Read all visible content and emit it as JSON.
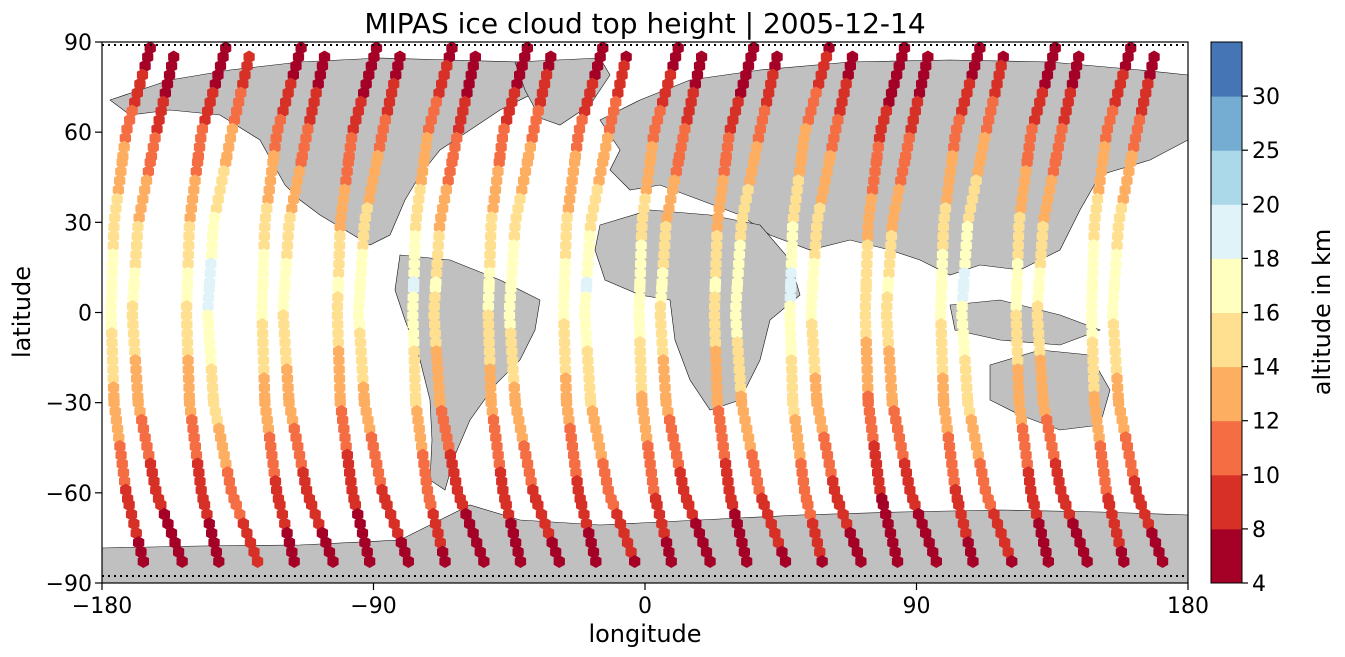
{
  "chart_data": {
    "type": "scatter",
    "title": "MIPAS ice cloud top height | 2005-12-14",
    "xlabel": "longitude",
    "ylabel": "latitude",
    "xlim": [
      -180,
      180
    ],
    "ylim": [
      -90,
      90
    ],
    "xticks": [
      -180,
      -90,
      0,
      90,
      180
    ],
    "xtick_labels": [
      "−180",
      "−90",
      "0",
      "90",
      "180"
    ],
    "yticks": [
      -90,
      -60,
      -30,
      0,
      30,
      60,
      90
    ],
    "ytick_labels": [
      "−90",
      "−60",
      "−30",
      "0",
      "30",
      "60",
      "90"
    ],
    "grid": false,
    "basemap": "world coastlines, land filled light grey",
    "colorbar": {
      "label": "altitude in km",
      "boundaries": [
        4,
        8,
        10,
        12,
        14,
        16,
        18,
        20,
        25,
        30
      ],
      "tick_labels": [
        "4",
        "8",
        "10",
        "12",
        "14",
        "16",
        "18",
        "20",
        "25",
        "30"
      ],
      "colors": [
        "#a50026",
        "#d73027",
        "#f46d43",
        "#fdae61",
        "#fee090",
        "#ffffbf",
        "#e0f3f8",
        "#abd9e9",
        "#74add1",
        "#4575b4"
      ]
    },
    "orbit_tracks": [
      {
        "points": [
          [
            -164,
            88
          ],
          [
            -172,
            60
          ],
          [
            -176,
            30
          ],
          [
            -177,
            0
          ],
          [
            -176,
            -30
          ],
          [
            -172,
            -60
          ],
          [
            -166,
            -84
          ]
        ]
      },
      {
        "points": [
          [
            -139,
            88
          ],
          [
            -147,
            60
          ],
          [
            -151,
            30
          ],
          [
            -152,
            0
          ],
          [
            -151,
            -30
          ],
          [
            -147,
            -60
          ],
          [
            -141,
            -84
          ]
        ]
      },
      {
        "points": [
          [
            -114,
            88
          ],
          [
            -122,
            60
          ],
          [
            -126,
            30
          ],
          [
            -127,
            0
          ],
          [
            -126,
            -30
          ],
          [
            -122,
            -60
          ],
          [
            -116,
            -84
          ]
        ]
      },
      {
        "points": [
          [
            -89,
            88
          ],
          [
            -97,
            60
          ],
          [
            -101,
            30
          ],
          [
            -102,
            0
          ],
          [
            -101,
            -30
          ],
          [
            -97,
            -60
          ],
          [
            -91,
            -84
          ]
        ]
      },
      {
        "points": [
          [
            -64,
            88
          ],
          [
            -72,
            60
          ],
          [
            -76,
            30
          ],
          [
            -77,
            0
          ],
          [
            -76,
            -30
          ],
          [
            -72,
            -60
          ],
          [
            -66,
            -84
          ]
        ]
      },
      {
        "points": [
          [
            -39,
            88
          ],
          [
            -47,
            60
          ],
          [
            -51,
            30
          ],
          [
            -52,
            0
          ],
          [
            -51,
            -30
          ],
          [
            -47,
            -60
          ],
          [
            -41,
            -84
          ]
        ]
      },
      {
        "points": [
          [
            -14,
            88
          ],
          [
            -22,
            60
          ],
          [
            -26,
            30
          ],
          [
            -27,
            0
          ],
          [
            -26,
            -30
          ],
          [
            -22,
            -60
          ],
          [
            -16,
            -84
          ]
        ]
      },
      {
        "points": [
          [
            11,
            88
          ],
          [
            3,
            60
          ],
          [
            -1,
            30
          ],
          [
            -2,
            0
          ],
          [
            -1,
            -30
          ],
          [
            3,
            -60
          ],
          [
            9,
            -84
          ]
        ]
      },
      {
        "points": [
          [
            36,
            88
          ],
          [
            28,
            60
          ],
          [
            24,
            30
          ],
          [
            23,
            0
          ],
          [
            24,
            -30
          ],
          [
            28,
            -60
          ],
          [
            34,
            -84
          ]
        ]
      },
      {
        "points": [
          [
            61,
            88
          ],
          [
            53,
            60
          ],
          [
            49,
            30
          ],
          [
            48,
            0
          ],
          [
            49,
            -30
          ],
          [
            53,
            -60
          ],
          [
            59,
            -84
          ]
        ]
      },
      {
        "points": [
          [
            86,
            88
          ],
          [
            78,
            60
          ],
          [
            74,
            30
          ],
          [
            73,
            0
          ],
          [
            74,
            -30
          ],
          [
            78,
            -60
          ],
          [
            84,
            -84
          ]
        ]
      },
      {
        "points": [
          [
            111,
            88
          ],
          [
            103,
            60
          ],
          [
            99,
            30
          ],
          [
            98,
            0
          ],
          [
            99,
            -30
          ],
          [
            103,
            -60
          ],
          [
            109,
            -84
          ]
        ]
      },
      {
        "points": [
          [
            136,
            88
          ],
          [
            128,
            60
          ],
          [
            124,
            30
          ],
          [
            123,
            0
          ],
          [
            124,
            -30
          ],
          [
            128,
            -60
          ],
          [
            134,
            -84
          ]
        ]
      },
      {
        "points": [
          [
            161,
            88
          ],
          [
            153,
            60
          ],
          [
            149,
            30
          ],
          [
            148,
            0
          ],
          [
            149,
            -30
          ],
          [
            153,
            -60
          ],
          [
            159,
            -84
          ]
        ]
      },
      {
        "points": [
          [
            -153,
            -84
          ],
          [
            -162,
            -60
          ],
          [
            -168,
            -30
          ],
          [
            -170,
            0
          ],
          [
            -168,
            30
          ],
          [
            -162,
            60
          ],
          [
            -156,
            86
          ]
        ]
      },
      {
        "points": [
          [
            -128,
            -84
          ],
          [
            -137,
            -60
          ],
          [
            -143,
            -30
          ],
          [
            -145,
            0
          ],
          [
            -143,
            30
          ],
          [
            -137,
            60
          ],
          [
            -131,
            86
          ]
        ]
      },
      {
        "points": [
          [
            -103,
            -84
          ],
          [
            -112,
            -60
          ],
          [
            -118,
            -30
          ],
          [
            -120,
            0
          ],
          [
            -118,
            30
          ],
          [
            -112,
            60
          ],
          [
            -106,
            86
          ]
        ]
      },
      {
        "points": [
          [
            -78,
            -84
          ],
          [
            -87,
            -60
          ],
          [
            -93,
            -30
          ],
          [
            -95,
            0
          ],
          [
            -93,
            30
          ],
          [
            -87,
            60
          ],
          [
            -81,
            86
          ]
        ]
      },
      {
        "points": [
          [
            -53,
            -84
          ],
          [
            -62,
            -60
          ],
          [
            -68,
            -30
          ],
          [
            -70,
            0
          ],
          [
            -68,
            30
          ],
          [
            -62,
            60
          ],
          [
            -56,
            86
          ]
        ]
      },
      {
        "points": [
          [
            -28,
            -84
          ],
          [
            -37,
            -60
          ],
          [
            -43,
            -30
          ],
          [
            -45,
            0
          ],
          [
            -43,
            30
          ],
          [
            -37,
            60
          ],
          [
            -31,
            86
          ]
        ]
      },
      {
        "points": [
          [
            -3,
            -84
          ],
          [
            -12,
            -60
          ],
          [
            -18,
            -30
          ],
          [
            -20,
            0
          ],
          [
            -18,
            30
          ],
          [
            -12,
            60
          ],
          [
            -6,
            86
          ]
        ]
      },
      {
        "points": [
          [
            22,
            -84
          ],
          [
            13,
            -60
          ],
          [
            7,
            -30
          ],
          [
            5,
            0
          ],
          [
            7,
            30
          ],
          [
            13,
            60
          ],
          [
            19,
            86
          ]
        ]
      },
      {
        "points": [
          [
            47,
            -84
          ],
          [
            38,
            -60
          ],
          [
            32,
            -30
          ],
          [
            30,
            0
          ],
          [
            32,
            30
          ],
          [
            38,
            60
          ],
          [
            44,
            86
          ]
        ]
      },
      {
        "points": [
          [
            72,
            -84
          ],
          [
            63,
            -60
          ],
          [
            57,
            -30
          ],
          [
            55,
            0
          ],
          [
            57,
            30
          ],
          [
            63,
            60
          ],
          [
            69,
            86
          ]
        ]
      },
      {
        "points": [
          [
            97,
            -84
          ],
          [
            88,
            -60
          ],
          [
            82,
            -30
          ],
          [
            80,
            0
          ],
          [
            82,
            30
          ],
          [
            88,
            60
          ],
          [
            94,
            86
          ]
        ]
      },
      {
        "points": [
          [
            122,
            -84
          ],
          [
            113,
            -60
          ],
          [
            107,
            -30
          ],
          [
            105,
            0
          ],
          [
            107,
            30
          ],
          [
            113,
            60
          ],
          [
            119,
            86
          ]
        ]
      },
      {
        "points": [
          [
            147,
            -84
          ],
          [
            138,
            -60
          ],
          [
            132,
            -30
          ],
          [
            130,
            0
          ],
          [
            132,
            30
          ],
          [
            138,
            60
          ],
          [
            144,
            86
          ]
        ]
      },
      {
        "points": [
          [
            172,
            -84
          ],
          [
            163,
            -60
          ],
          [
            157,
            -30
          ],
          [
            155,
            0
          ],
          [
            157,
            30
          ],
          [
            163,
            60
          ],
          [
            169,
            86
          ]
        ]
      }
    ],
    "ice_cloud_segments": [
      {
        "lat": [
          88,
          52
        ],
        "altitude_km": [
          6,
          12
        ]
      },
      {
        "lat": [
          50,
          10
        ],
        "altitude_km": [
          12,
          17
        ]
      },
      {
        "lat": [
          8,
          -28
        ],
        "altitude_km": [
          17,
          13
        ]
      },
      {
        "lat": [
          -30,
          -62
        ],
        "altitude_km": [
          13,
          9
        ]
      },
      {
        "lat": [
          -64,
          -86
        ],
        "altitude_km": [
          9,
          6
        ]
      }
    ],
    "ice_cloud_track_altitude_offsets_km": [
      0.5,
      -0.5,
      0.2,
      -1.0,
      1.0,
      -0.3,
      0.0,
      0.7,
      -0.7,
      1.5,
      -1.2,
      0.3,
      -0.2,
      0.8,
      -0.6,
      1.8,
      -0.1,
      0.4,
      -0.9,
      0.6,
      1.2,
      -0.4,
      0.9,
      0.1,
      -0.8,
      1.4,
      -0.5,
      0.2
    ]
  }
}
